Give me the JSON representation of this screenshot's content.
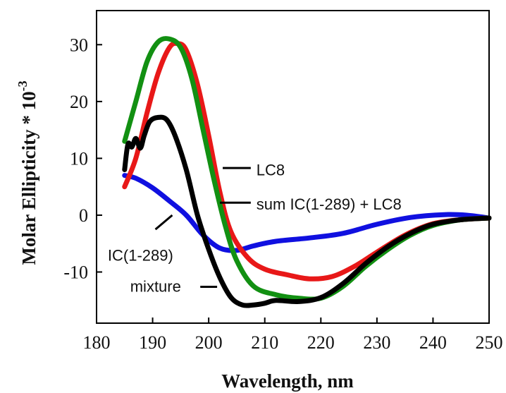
{
  "chart_data": {
    "type": "line",
    "xlabel": "Wavelength, nm",
    "ylabel_main": "Molar Ellipticity * 10",
    "ylabel_exp": "-3",
    "xlim": [
      180,
      250
    ],
    "ylim": [
      -19,
      36
    ],
    "x_ticks": [
      180,
      190,
      200,
      210,
      220,
      230,
      240,
      250
    ],
    "x_tick_labels": [
      "180",
      "190",
      "200",
      "210",
      "220",
      "230",
      "240",
      "250"
    ],
    "y_ticks": [
      30,
      20,
      10,
      0,
      -10
    ],
    "y_tick_labels": [
      "30",
      "20",
      "10",
      "0",
      "-10"
    ],
    "grid": false,
    "series": [
      {
        "name": "IC(1-289)",
        "color": "#1010e0",
        "points": [
          [
            185,
            7
          ],
          [
            187,
            6.5
          ],
          [
            190,
            4.8
          ],
          [
            193,
            2.5
          ],
          [
            196,
            0
          ],
          [
            199,
            -3.5
          ],
          [
            202,
            -5.8
          ],
          [
            205,
            -6.2
          ],
          [
            208,
            -5.4
          ],
          [
            212,
            -4.6
          ],
          [
            218,
            -4
          ],
          [
            224,
            -3.2
          ],
          [
            230,
            -1.6
          ],
          [
            236,
            -0.4
          ],
          [
            242,
            0.1
          ],
          [
            246,
            0
          ],
          [
            250,
            -0.5
          ]
        ]
      },
      {
        "name": "LC8",
        "color": "#e81818",
        "points": [
          [
            185,
            5
          ],
          [
            187,
            10
          ],
          [
            189,
            18
          ],
          [
            191,
            25
          ],
          [
            193,
            29.5
          ],
          [
            194.5,
            30.2
          ],
          [
            196,
            29
          ],
          [
            198,
            23
          ],
          [
            200,
            14
          ],
          [
            202,
            4
          ],
          [
            204,
            -3
          ],
          [
            207,
            -7.5
          ],
          [
            210,
            -9.5
          ],
          [
            214,
            -10.5
          ],
          [
            218,
            -11.2
          ],
          [
            222,
            -10.8
          ],
          [
            226,
            -9
          ],
          [
            230,
            -6.5
          ],
          [
            235,
            -3.5
          ],
          [
            240,
            -1.5
          ],
          [
            245,
            -0.8
          ],
          [
            250,
            -0.5
          ]
        ]
      },
      {
        "name": "sum IC(1-289) + LC8",
        "color": "#129012",
        "points": [
          [
            185,
            13
          ],
          [
            187,
            20
          ],
          [
            189,
            27
          ],
          [
            191,
            30.5
          ],
          [
            193,
            31
          ],
          [
            195,
            29.5
          ],
          [
            197,
            24
          ],
          [
            199,
            15
          ],
          [
            201,
            6
          ],
          [
            203,
            -2
          ],
          [
            205,
            -8
          ],
          [
            208,
            -12.5
          ],
          [
            212,
            -14
          ],
          [
            216,
            -14.6
          ],
          [
            220,
            -14.6
          ],
          [
            224,
            -12.5
          ],
          [
            228,
            -9
          ],
          [
            232,
            -6
          ],
          [
            236,
            -3.5
          ],
          [
            240,
            -1.8
          ],
          [
            245,
            -0.8
          ],
          [
            250,
            -0.5
          ]
        ]
      },
      {
        "name": "mixture",
        "color": "#000000",
        "points": [
          [
            185,
            8
          ],
          [
            185.6,
            12.5
          ],
          [
            186.3,
            12
          ],
          [
            187,
            13.5
          ],
          [
            187.8,
            11.8
          ],
          [
            188.5,
            14
          ],
          [
            189.5,
            16.5
          ],
          [
            191,
            17.2
          ],
          [
            192.5,
            16.8
          ],
          [
            194,
            14
          ],
          [
            196,
            8
          ],
          [
            198,
            0
          ],
          [
            200,
            -6
          ],
          [
            202,
            -11
          ],
          [
            204,
            -14.5
          ],
          [
            206,
            -15.8
          ],
          [
            208,
            -15.8
          ],
          [
            210,
            -15.5
          ],
          [
            212,
            -15
          ],
          [
            216,
            -15.2
          ],
          [
            220,
            -14.5
          ],
          [
            224,
            -12
          ],
          [
            228,
            -8.5
          ],
          [
            232,
            -5.5
          ],
          [
            236,
            -3.2
          ],
          [
            240,
            -1.6
          ],
          [
            245,
            -0.8
          ],
          [
            250,
            -0.5
          ]
        ]
      }
    ],
    "annotations": [
      {
        "label": "LC8",
        "text_xy": [
          208.5,
          8
        ],
        "line": [
          [
            202.5,
            8.3
          ],
          [
            207.5,
            8.3
          ]
        ]
      },
      {
        "label": "sum IC(1-289) + LC8",
        "text_xy": [
          208.5,
          2
        ],
        "line": [
          [
            202,
            2.2
          ],
          [
            207.5,
            2.2
          ]
        ]
      },
      {
        "label": "IC(1-289)",
        "text_xy": [
          182,
          -7
        ],
        "line": [
          [
            193.5,
            0
          ],
          [
            190.5,
            -2.5
          ]
        ]
      },
      {
        "label": "mixture",
        "text_xy": [
          186,
          -12.5
        ],
        "line": [
          [
            198.5,
            -12.6
          ],
          [
            201.5,
            -12.6
          ]
        ]
      }
    ]
  }
}
